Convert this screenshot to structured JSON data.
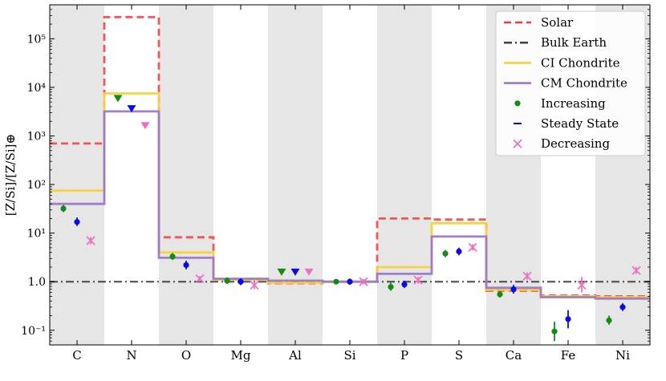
{
  "chart_data": {
    "type": "step-scatter",
    "ylabel": "[Z/Si]/[Z/Si]⊕",
    "yscale": "log",
    "ylim": [
      0.05,
      500000
    ],
    "categories": [
      "C",
      "N",
      "O",
      "Mg",
      "Al",
      "Si",
      "P",
      "S",
      "Ca",
      "Fe",
      "Ni"
    ],
    "shaded_categories": [
      "C",
      "O",
      "Al",
      "P",
      "Ca",
      "Ni"
    ],
    "y_ticks": [
      {
        "value": 0.1,
        "label": "10⁻¹"
      },
      {
        "value": 1,
        "label": "1.0"
      },
      {
        "value": 10,
        "label": "10¹"
      },
      {
        "value": 100,
        "label": "10²"
      },
      {
        "value": 1000,
        "label": "10³"
      },
      {
        "value": 10000,
        "label": "10⁴"
      },
      {
        "value": 100000,
        "label": "10⁵"
      }
    ],
    "step_series": [
      {
        "name": "Solar",
        "color": "#f03c3c",
        "style": "dashed",
        "values": [
          700,
          280000,
          8.2,
          1.1,
          0.93,
          1.0,
          20,
          19,
          0.65,
          0.52,
          0.5
        ]
      },
      {
        "name": "Bulk Earth",
        "color": "#444444",
        "style": "dashdot",
        "values": [
          1,
          1,
          1,
          1,
          1,
          1,
          1,
          1,
          1,
          1,
          1
        ]
      },
      {
        "name": "CI Chondrite",
        "color": "#f5d23c",
        "style": "solid",
        "values": [
          75,
          7500,
          4.0,
          1.1,
          0.95,
          1.0,
          2.0,
          16,
          0.68,
          0.5,
          0.48
        ]
      },
      {
        "name": "CM Chondrite",
        "color": "#9b78c8",
        "style": "solid",
        "values": [
          40,
          3200,
          3.1,
          1.15,
          1.05,
          1.0,
          1.45,
          8.5,
          0.75,
          0.48,
          0.45
        ]
      }
    ],
    "point_series": [
      {
        "name": "Increasing",
        "color": "#168a16",
        "marker": "dot",
        "points": [
          {
            "category": "C",
            "y": 32,
            "lo": 27,
            "hi": 38
          },
          {
            "category": "N",
            "y": 6000,
            "upper_limit": true
          },
          {
            "category": "O",
            "y": 3.3,
            "lo": 2.8,
            "hi": 3.9
          },
          {
            "category": "Mg",
            "y": 1.05,
            "lo": 0.9,
            "hi": 1.22
          },
          {
            "category": "Al",
            "y": 1.6,
            "upper_limit": true
          },
          {
            "category": "Si",
            "y": 1.0,
            "lo": 0.88,
            "hi": 1.13
          },
          {
            "category": "P",
            "y": 0.78,
            "lo": 0.65,
            "hi": 0.95
          },
          {
            "category": "S",
            "y": 3.8,
            "lo": 3.2,
            "hi": 4.5
          },
          {
            "category": "Ca",
            "y": 0.55,
            "lo": 0.47,
            "hi": 0.65
          },
          {
            "category": "Fe",
            "y": 0.095,
            "lo": 0.06,
            "hi": 0.15
          },
          {
            "category": "Ni",
            "y": 0.16,
            "lo": 0.13,
            "hi": 0.2
          }
        ]
      },
      {
        "name": "Steady State",
        "color": "#0a0af0",
        "marker": "dot",
        "points": [
          {
            "category": "C",
            "y": 17,
            "lo": 14,
            "hi": 21
          },
          {
            "category": "N",
            "y": 3700,
            "upper_limit": true
          },
          {
            "category": "O",
            "y": 2.2,
            "lo": 1.8,
            "hi": 2.7
          },
          {
            "category": "Mg",
            "y": 1.0,
            "lo": 0.85,
            "hi": 1.17
          },
          {
            "category": "Al",
            "y": 1.6,
            "upper_limit": true
          },
          {
            "category": "Si",
            "y": 1.0,
            "lo": 0.86,
            "hi": 1.16
          },
          {
            "category": "P",
            "y": 0.88,
            "lo": 0.74,
            "hi": 1.05
          },
          {
            "category": "S",
            "y": 4.2,
            "lo": 3.5,
            "hi": 5.0
          },
          {
            "category": "Ca",
            "y": 0.7,
            "lo": 0.57,
            "hi": 0.86
          },
          {
            "category": "Fe",
            "y": 0.17,
            "lo": 0.11,
            "hi": 0.26
          },
          {
            "category": "Ni",
            "y": 0.3,
            "lo": 0.25,
            "hi": 0.36
          }
        ]
      },
      {
        "name": "Decreasing",
        "color": "#f070c0",
        "marker": "x",
        "points": [
          {
            "category": "C",
            "y": 7,
            "lo": 5.9,
            "hi": 8.3
          },
          {
            "category": "N",
            "y": 1650,
            "upper_limit": true
          },
          {
            "category": "O",
            "y": 1.15,
            "lo": 1.0,
            "hi": 1.3
          },
          {
            "category": "Mg",
            "y": 0.85,
            "lo": 0.7,
            "hi": 1.0
          },
          {
            "category": "Al",
            "y": 1.6,
            "upper_limit": true
          },
          {
            "category": "Si",
            "y": 1.0,
            "lo": 0.88,
            "hi": 1.13
          },
          {
            "category": "P",
            "y": 1.08,
            "lo": 0.92,
            "hi": 1.26
          },
          {
            "category": "S",
            "y": 5.1,
            "lo": 4.4,
            "hi": 5.9
          },
          {
            "category": "Ca",
            "y": 1.3,
            "lo": 1.1,
            "hi": 1.55
          },
          {
            "category": "Fe",
            "y": 0.85,
            "lo": 0.6,
            "hi": 1.25
          },
          {
            "category": "Ni",
            "y": 1.7,
            "lo": 1.45,
            "hi": 2.0
          }
        ]
      }
    ],
    "legend": {
      "position": "top-right",
      "entries": [
        "Solar",
        "Bulk Earth",
        "CI Chondrite",
        "CM Chondrite",
        "Increasing",
        "Steady State",
        "Decreasing"
      ]
    },
    "grid": false
  }
}
